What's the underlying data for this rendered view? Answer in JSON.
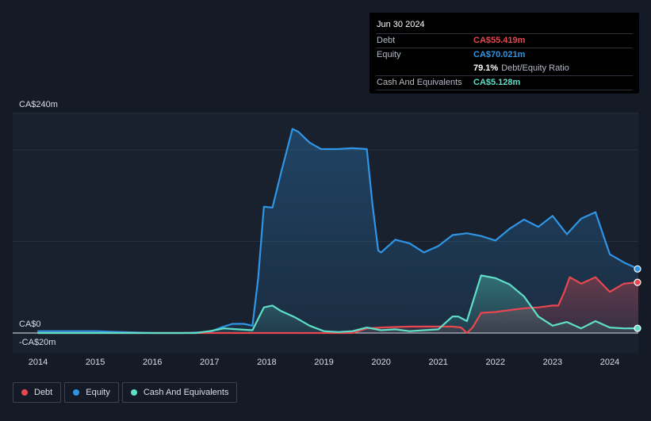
{
  "tooltip": {
    "date": "Jun 30 2024",
    "debt_label": "Debt",
    "debt_value": "CA$55.419m",
    "equity_label": "Equity",
    "equity_value": "CA$70.021m",
    "ratio_value": "79.1%",
    "ratio_label": "Debt/Equity Ratio",
    "cash_label": "Cash And Equivalents",
    "cash_value": "CA$5.128m"
  },
  "legend": [
    {
      "label": "Debt",
      "color": "#e8474f"
    },
    {
      "label": "Equity",
      "color": "#2f95e4"
    },
    {
      "label": "Cash And Equivalents",
      "color": "#5fdfc8"
    }
  ],
  "chart_data": {
    "type": "area",
    "title": "",
    "xlabel": "",
    "ylabel": "",
    "y_tick_labels": [
      {
        "value": 240,
        "label": "CA$240m"
      },
      {
        "value": 0,
        "label": "CA$0"
      },
      {
        "value": -20,
        "label": "-CA$20m"
      }
    ],
    "x_tick_labels": [
      "2014",
      "2015",
      "2016",
      "2017",
      "2018",
      "2019",
      "2020",
      "2021",
      "2022",
      "2023",
      "2024"
    ],
    "ylim": [
      -20,
      240
    ],
    "xlim": [
      2013.8,
      2024.5
    ],
    "grid": true,
    "legend_position": "bottom-left",
    "colors": {
      "debt": "#e8474f",
      "equity": "#2f95e4",
      "cash": "#5fdfc8"
    },
    "series": [
      {
        "name": "Debt",
        "key": "debt",
        "x": [
          2014.0,
          2017.0,
          2018.0,
          2019.0,
          2019.5,
          2019.75,
          2020.0,
          2020.5,
          2021.0,
          2021.25,
          2021.4,
          2021.5,
          2021.6,
          2021.75,
          2022.0,
          2022.25,
          2022.5,
          2022.75,
          2023.0,
          2023.1,
          2023.2,
          2023.3,
          2023.5,
          2023.75,
          2024.0,
          2024.25,
          2024.5
        ],
        "values": [
          0,
          0,
          0,
          0,
          0,
          5,
          6,
          7,
          7,
          7,
          6,
          0,
          6,
          22,
          23,
          25,
          27,
          28,
          30,
          30,
          44,
          61,
          54,
          61,
          45,
          54,
          55.4
        ]
      },
      {
        "name": "Equity",
        "key": "equity",
        "x": [
          2014.0,
          2014.5,
          2015.0,
          2016.0,
          2016.5,
          2017.0,
          2017.2,
          2017.4,
          2017.6,
          2017.75,
          2017.85,
          2017.95,
          2018.1,
          2018.25,
          2018.45,
          2018.55,
          2018.75,
          2018.95,
          2019.25,
          2019.5,
          2019.75,
          2019.85,
          2019.95,
          2020.0,
          2020.25,
          2020.5,
          2020.75,
          2021.0,
          2021.25,
          2021.5,
          2021.75,
          2022.0,
          2022.25,
          2022.5,
          2022.75,
          2023.0,
          2023.25,
          2023.5,
          2023.75,
          2024.0,
          2024.25,
          2024.5
        ],
        "values": [
          2,
          2,
          2,
          0,
          0,
          1,
          6,
          10,
          10,
          8,
          60,
          138,
          137,
          175,
          223,
          220,
          208,
          201,
          201,
          202,
          201,
          140,
          90,
          88,
          102,
          98,
          88,
          95,
          107,
          109,
          106,
          101,
          114,
          124,
          116,
          128,
          108,
          125,
          132,
          86,
          77,
          70
        ]
      },
      {
        "name": "Cash And Equivalents",
        "key": "cash",
        "x": [
          2014.0,
          2015.0,
          2016.0,
          2016.75,
          2017.0,
          2017.25,
          2017.5,
          2017.75,
          2017.95,
          2018.1,
          2018.25,
          2018.5,
          2018.75,
          2019.0,
          2019.25,
          2019.5,
          2019.75,
          2020.0,
          2020.25,
          2020.5,
          2020.75,
          2021.0,
          2021.25,
          2021.35,
          2021.5,
          2021.75,
          2022.0,
          2022.25,
          2022.5,
          2022.75,
          2023.0,
          2023.25,
          2023.5,
          2023.75,
          2024.0,
          2024.25,
          2024.5
        ],
        "values": [
          0,
          0,
          0,
          0,
          2,
          5,
          4,
          3,
          28,
          30,
          24,
          17,
          8,
          2,
          1,
          2,
          6,
          3,
          4,
          2,
          3,
          4,
          18,
          18,
          13,
          63,
          60,
          53,
          40,
          18,
          8,
          12,
          5,
          13,
          6,
          5,
          5.1
        ]
      }
    ]
  }
}
